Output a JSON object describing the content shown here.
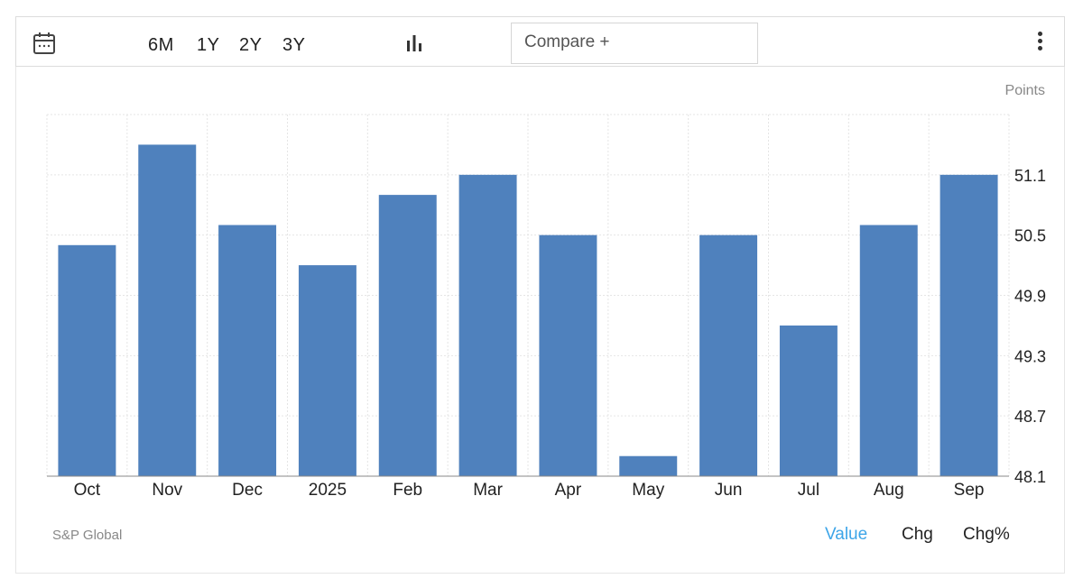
{
  "toolbar": {
    "calendar_icon": "calendar-icon",
    "ranges": [
      "6M",
      "1Y",
      "2Y",
      "3Y"
    ],
    "chart_type_icon": "bar-chart-icon",
    "compare_label": "Compare +",
    "menu_icon": "more-vertical-icon"
  },
  "unit_label": "Points",
  "source": "S&P Global",
  "view_modes": {
    "active": "Value",
    "items": [
      "Value",
      "Chg",
      "Chg%"
    ]
  },
  "colors": {
    "bar": "#4f81bd",
    "active_mode": "#3da5e8",
    "grid": "#e5e5e5"
  },
  "chart_data": {
    "type": "bar",
    "categories": [
      "Oct",
      "Nov",
      "Dec",
      "2025",
      "Feb",
      "Mar",
      "Apr",
      "May",
      "Jun",
      "Jul",
      "Aug",
      "Sep"
    ],
    "values": [
      50.4,
      51.4,
      50.6,
      50.2,
      50.9,
      51.1,
      50.5,
      48.3,
      50.5,
      49.6,
      50.6,
      51.1
    ],
    "yticks": [
      48.1,
      48.7,
      49.3,
      49.9,
      50.5,
      51.1
    ],
    "ylim": [
      48.1,
      51.7
    ],
    "ylabel": "Points",
    "xlabel": "",
    "grid": true,
    "y_axis_side": "right"
  }
}
